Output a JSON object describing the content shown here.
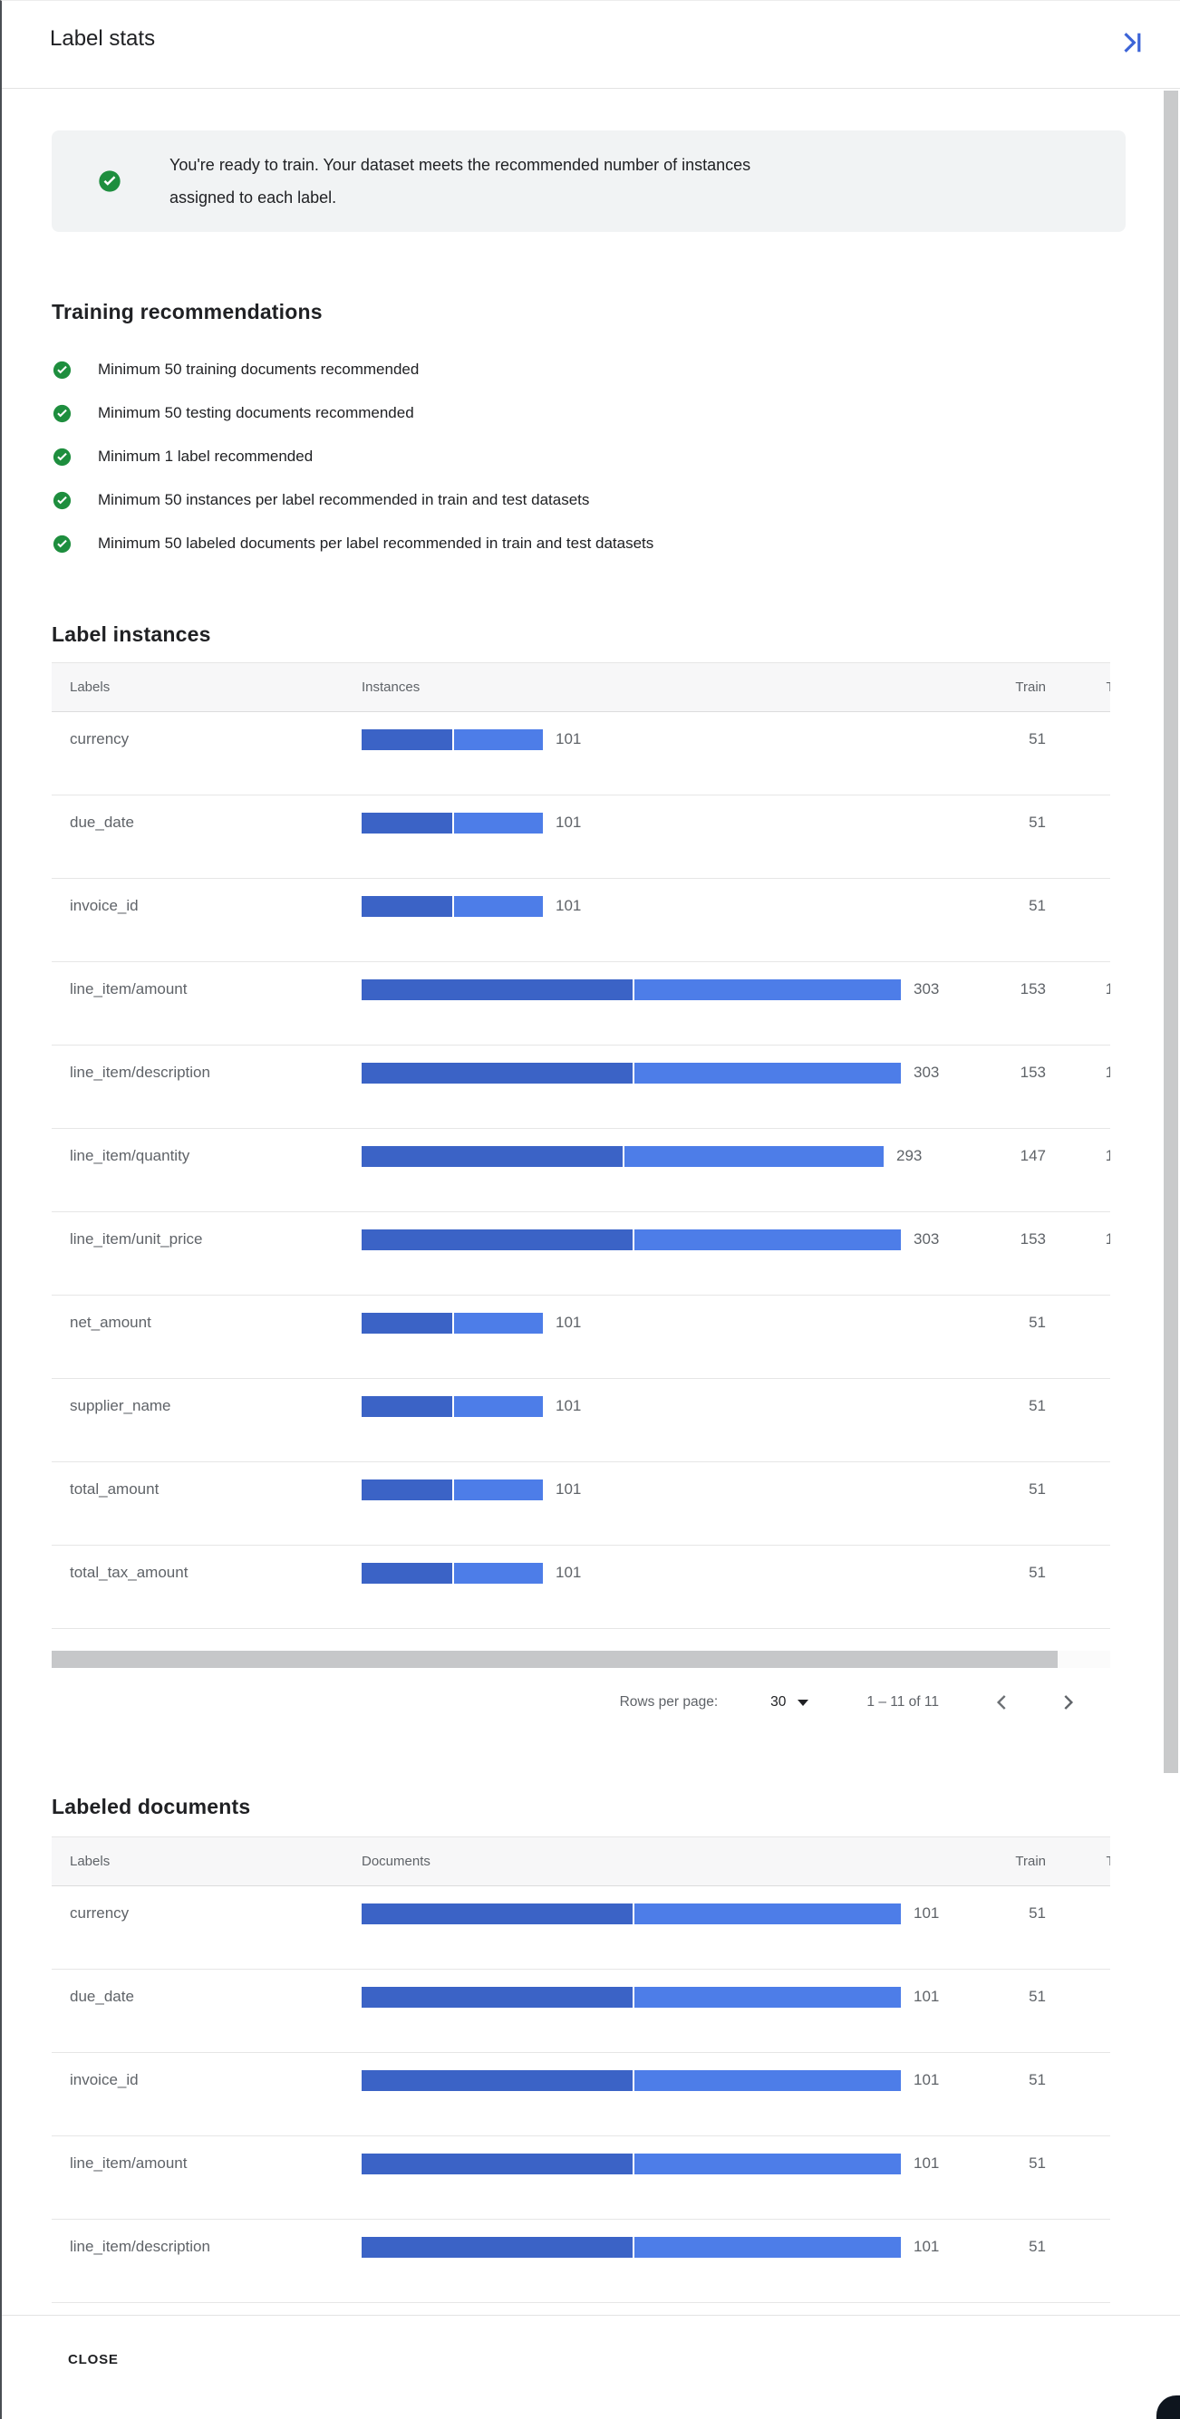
{
  "header": {
    "title": "Label stats"
  },
  "icons": {
    "collapse": "collapse-panel-right-icon",
    "success": "check-circle-icon",
    "dropdown": "dropdown-caret-icon",
    "prev": "chevron-left-icon",
    "next": "chevron-right-icon"
  },
  "colors": {
    "accent_blue": "#3c64d7",
    "success_green": "#1e8e3e",
    "bar_train": "#3b63c6",
    "bar_test": "#4d7de8",
    "text_secondary": "#5f6368"
  },
  "banner": {
    "text": "You're ready to train. Your dataset meets the recommended number of instances assigned to each label."
  },
  "recommendations": {
    "heading": "Training recommendations",
    "items": [
      "Minimum 50 training documents recommended",
      "Minimum 50 testing documents recommended",
      "Minimum 1 label recommended",
      "Minimum 50 instances per label recommended in train and test datasets",
      "Minimum 50 labeled documents per label recommended in train and test datasets"
    ]
  },
  "label_instances": {
    "heading": "Label instances",
    "columns": [
      "Labels",
      "Instances",
      "Train",
      "Test"
    ],
    "rows": [
      {
        "label": "currency",
        "total": 101,
        "train": 51
      },
      {
        "label": "due_date",
        "total": 101,
        "train": 51
      },
      {
        "label": "invoice_id",
        "total": 101,
        "train": 51
      },
      {
        "label": "line_item/amount",
        "total": 303,
        "train": 153
      },
      {
        "label": "line_item/description",
        "total": 303,
        "train": 153
      },
      {
        "label": "line_item/quantity",
        "total": 293,
        "train": 147
      },
      {
        "label": "line_item/unit_price",
        "total": 303,
        "train": 153
      },
      {
        "label": "net_amount",
        "total": 101,
        "train": 51
      },
      {
        "label": "supplier_name",
        "total": 101,
        "train": 51
      },
      {
        "label": "total_amount",
        "total": 101,
        "train": 51
      },
      {
        "label": "total_tax_amount",
        "total": 101,
        "train": 51
      }
    ],
    "pagination": {
      "rows_per_page_label": "Rows per page:",
      "rows_per_page_value": "30",
      "range": "1 – 11 of 11"
    }
  },
  "labeled_documents": {
    "heading": "Labeled documents",
    "columns": [
      "Labels",
      "Documents",
      "Train",
      "Test"
    ],
    "rows": [
      {
        "label": "currency",
        "total": 101,
        "train": 51
      },
      {
        "label": "due_date",
        "total": 101,
        "train": 51
      },
      {
        "label": "invoice_id",
        "total": 101,
        "train": 51
      },
      {
        "label": "line_item/amount",
        "total": 101,
        "train": 51
      },
      {
        "label": "line_item/description",
        "total": 101,
        "train": 51
      }
    ]
  },
  "footer": {
    "close_label": "CLOSE"
  }
}
